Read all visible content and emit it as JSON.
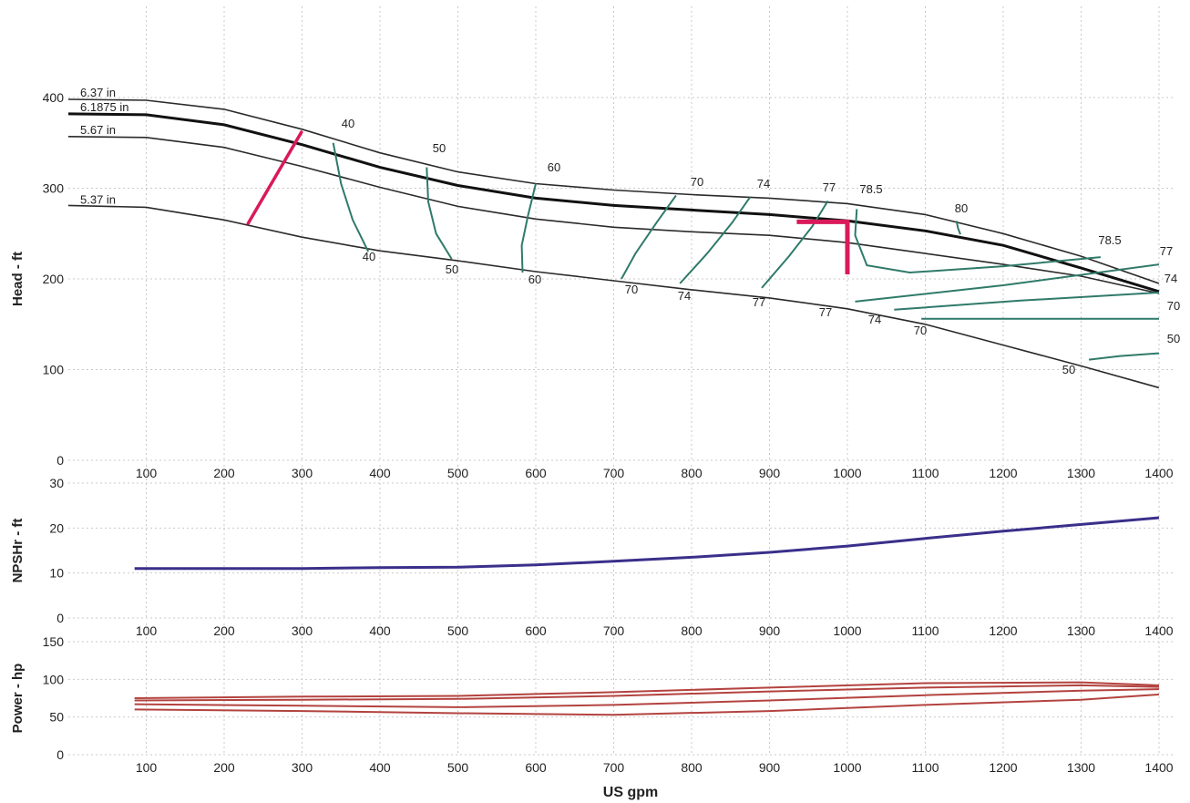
{
  "chart_data": [
    {
      "type": "line",
      "ylabel": "Head - ft",
      "xlim": [
        0,
        1400
      ],
      "ylim": [
        0,
        400
      ],
      "xticks": [
        100,
        200,
        300,
        400,
        500,
        600,
        700,
        800,
        900,
        1000,
        1100,
        1200,
        1300,
        1400
      ],
      "yticks": [
        0,
        100,
        200,
        300,
        400
      ],
      "grid": true,
      "impeller_curves": [
        {
          "name": "6.37 in",
          "x": [
            0,
            100,
            200,
            300,
            400,
            500,
            600,
            700,
            800,
            900,
            1000,
            1100,
            1200,
            1300,
            1400
          ],
          "y": [
            398,
            397,
            387,
            365,
            339,
            318,
            305,
            298,
            293,
            289,
            283,
            271,
            250,
            225,
            195
          ]
        },
        {
          "name": "6.1875 in",
          "x": [
            0,
            100,
            200,
            300,
            400,
            500,
            600,
            700,
            800,
            900,
            1000,
            1100,
            1200,
            1300,
            1400
          ],
          "y": [
            382,
            381,
            370,
            348,
            323,
            303,
            289,
            281,
            276,
            271,
            264,
            253,
            237,
            212,
            186
          ]
        },
        {
          "name": "5.67 in",
          "x": [
            0,
            100,
            200,
            300,
            400,
            500,
            600,
            700,
            800,
            900,
            1000,
            1100,
            1200,
            1300,
            1400
          ],
          "y": [
            357,
            356,
            345,
            324,
            301,
            280,
            266,
            257,
            252,
            248,
            240,
            228,
            216,
            203,
            184
          ]
        },
        {
          "name": "5.37 in",
          "x": [
            0,
            100,
            200,
            300,
            400,
            500,
            600,
            700,
            800,
            900,
            1000,
            1100,
            1200,
            1300,
            1400
          ],
          "y": [
            281,
            279,
            265,
            246,
            231,
            220,
            208,
            198,
            188,
            179,
            167,
            150,
            127,
            104,
            80
          ]
        }
      ],
      "efficiency_curves": [
        {
          "label": "40",
          "x": [
            340,
            350,
            365,
            385
          ],
          "y": [
            350,
            305,
            265,
            230
          ]
        },
        {
          "label": "50",
          "x": [
            460,
            462,
            472,
            492
          ],
          "y": [
            323,
            285,
            250,
            222
          ]
        },
        {
          "label": "60",
          "x": [
            600,
            590,
            582,
            583
          ],
          "y": [
            305,
            270,
            237,
            207
          ]
        },
        {
          "label": "70",
          "x": [
            780,
            755,
            728,
            710
          ],
          "y": [
            292,
            262,
            228,
            200
          ]
        },
        {
          "label": "74",
          "x": [
            875,
            852,
            820,
            785
          ],
          "y": [
            290,
            262,
            228,
            195
          ]
        },
        {
          "label": "77",
          "x": [
            975,
            955,
            925,
            890
          ],
          "y": [
            286,
            258,
            225,
            190
          ]
        },
        {
          "label": "78.5",
          "x": [
            1012,
            1010,
            1025,
            1080,
            1200,
            1325
          ],
          "y": [
            277,
            248,
            215,
            207,
            214,
            224
          ]
        },
        {
          "label": "80",
          "x": [
            1140,
            1142,
            1145
          ],
          "y": [
            264,
            256,
            249
          ]
        },
        {
          "label": "77",
          "x": [
            1010,
            1200,
            1400
          ],
          "y": [
            175,
            193,
            216
          ]
        },
        {
          "label": "74",
          "x": [
            1060,
            1220,
            1400
          ],
          "y": [
            166,
            176,
            185
          ]
        },
        {
          "label": "70",
          "x": [
            1095,
            1250,
            1400
          ],
          "y": [
            156,
            156,
            156
          ]
        },
        {
          "label": "50",
          "x": [
            1310,
            1350,
            1400
          ],
          "y": [
            111,
            115,
            118
          ]
        }
      ],
      "operating_point": {
        "x": 1000,
        "y": 263
      },
      "annotations": {
        "diameters": [
          "6.37 in",
          "6.1875 in",
          "5.67 in",
          "5.37 in"
        ],
        "efficiency_labels": [
          "40",
          "40",
          "50",
          "50",
          "60",
          "60",
          "70",
          "70",
          "74",
          "74",
          "77",
          "77",
          "78.5",
          "80",
          "78.5",
          "77",
          "74",
          "70",
          "77",
          "74",
          "70",
          "50",
          "50"
        ]
      },
      "colors": {
        "impeller": "#2a2a2a",
        "selected_impeller": "#111111",
        "efficiency": "#2f7a6a",
        "operating_point": "#d91a5a"
      }
    },
    {
      "type": "line",
      "ylabel": "NPSHr - ft",
      "xlim": [
        0,
        1400
      ],
      "ylim": [
        0,
        30
      ],
      "xticks": [
        100,
        200,
        300,
        400,
        500,
        600,
        700,
        800,
        900,
        1000,
        1100,
        1200,
        1300,
        1400
      ],
      "yticks": [
        0,
        10,
        20,
        30
      ],
      "grid": true,
      "series": [
        {
          "x": [
            85,
            200,
            300,
            400,
            500,
            600,
            700,
            800,
            900,
            1000,
            1100,
            1200,
            1300,
            1400
          ],
          "y": [
            11,
            11,
            11,
            11.2,
            11.3,
            11.8,
            12.6,
            13.5,
            14.6,
            16,
            17.7,
            19.3,
            20.8,
            22.3
          ]
        }
      ],
      "colors": {
        "line": "#3a2f8a"
      }
    },
    {
      "type": "line",
      "ylabel": "Power - hp",
      "xlabel": "US gpm",
      "xlim": [
        0,
        1400
      ],
      "ylim": [
        0,
        150
      ],
      "xticks": [
        100,
        200,
        300,
        400,
        500,
        600,
        700,
        800,
        900,
        1000,
        1100,
        1200,
        1300,
        1400
      ],
      "yticks": [
        0,
        50,
        100,
        150
      ],
      "grid": true,
      "series": [
        {
          "x": [
            85,
            300,
            500,
            700,
            900,
            1100,
            1300,
            1400
          ],
          "y": [
            75,
            77,
            78,
            83,
            89,
            95,
            96,
            92
          ]
        },
        {
          "x": [
            85,
            300,
            500,
            700,
            900,
            1100,
            1300,
            1400
          ],
          "y": [
            72,
            73,
            74,
            78,
            84,
            89,
            92,
            90
          ]
        },
        {
          "x": [
            85,
            300,
            500,
            700,
            900,
            1100,
            1300,
            1400
          ],
          "y": [
            67,
            65,
            63,
            66,
            72,
            79,
            85,
            87
          ]
        },
        {
          "x": [
            85,
            300,
            500,
            700,
            900,
            1100,
            1300,
            1400
          ],
          "y": [
            60,
            58,
            55,
            53,
            58,
            66,
            73,
            80
          ]
        }
      ],
      "colors": {
        "line": "#b3433f"
      }
    }
  ]
}
